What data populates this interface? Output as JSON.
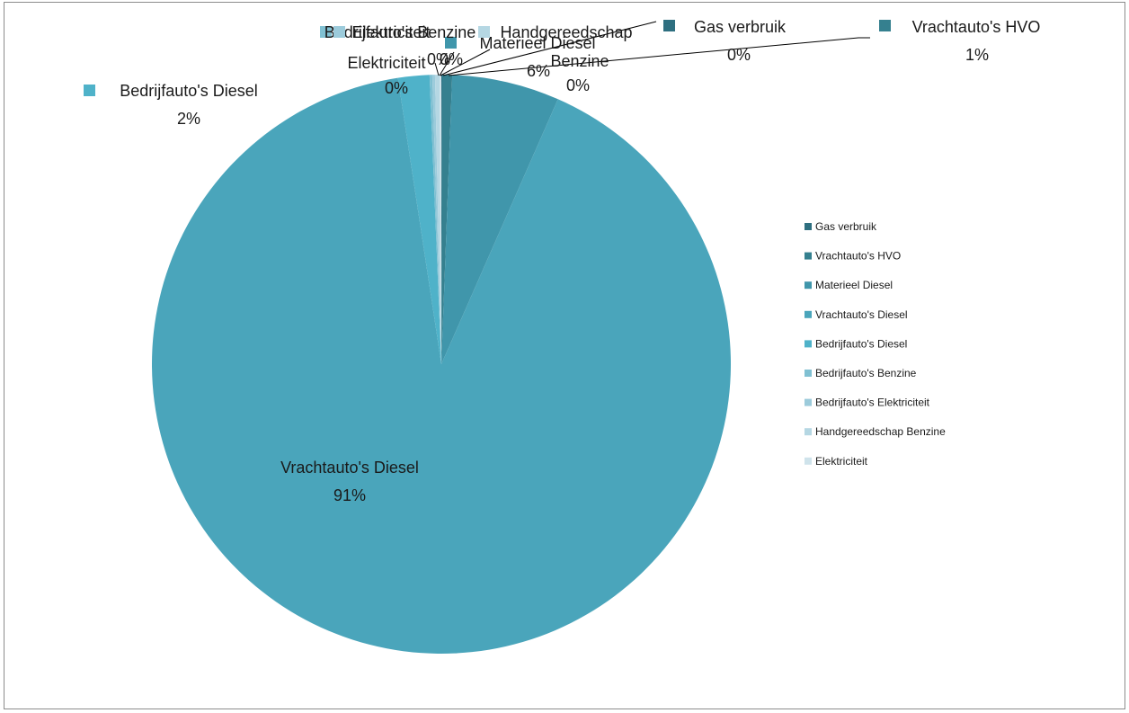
{
  "chart_data": {
    "type": "pie",
    "title": "",
    "legend_position": "right",
    "slices": [
      {
        "label": "Gas verbruik",
        "value": 0.05,
        "pct_label": "0%",
        "color": "#2e6f80"
      },
      {
        "label": "Vrachtauto's HVO",
        "value": 0.55,
        "pct_label": "1%",
        "color": "#35808f"
      },
      {
        "label": "Materieel Diesel",
        "value": 6.0,
        "pct_label": "6%",
        "color": "#4096ab"
      },
      {
        "label": "Vrachtauto's Diesel",
        "value": 91.0,
        "pct_label": "91%",
        "color": "#4aa5bb"
      },
      {
        "label": "Bedrijfauto's Diesel",
        "value": 1.75,
        "pct_label": "2%",
        "color": "#4fb2c9"
      },
      {
        "label": "Bedrijfauto's Benzine",
        "value": 0.15,
        "pct_label": "0%",
        "color": "#80c0d2"
      },
      {
        "label": "Bedrijfauto's Elektriciteit",
        "value": 0.15,
        "pct_label": "0%",
        "color": "#9ccbdb"
      },
      {
        "label": "Handgereedschap Benzine",
        "value": 0.25,
        "pct_label": "0%",
        "color": "#b5d7e3"
      },
      {
        "label": "Elektriciteit",
        "value": 0.1,
        "pct_label": "0%",
        "color": "#cfe3eb"
      }
    ]
  }
}
